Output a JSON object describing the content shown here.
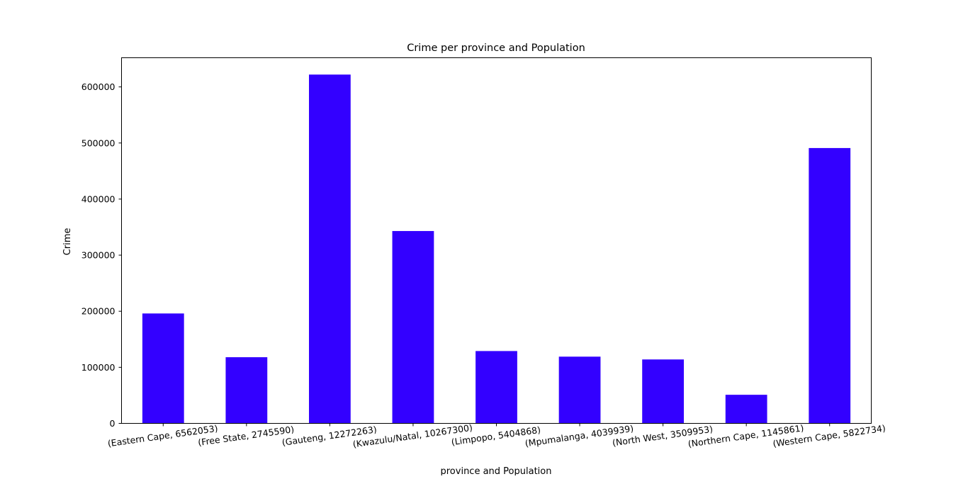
{
  "chart_data": {
    "type": "bar",
    "title": "Crime per province and Population",
    "xlabel": "province and Population",
    "ylabel": "Crime",
    "categories": [
      "(Eastern Cape, 6562053)",
      "(Free State, 2745590)",
      "(Gauteng, 12272263)",
      "(Kwazulu/Natal, 10267300)",
      "(Limpopo, 5404868)",
      "(Mpumalanga, 4039939)",
      "(North West, 3509953)",
      "(Northern Cape, 1145861)",
      "(Western Cape, 5822734)"
    ],
    "values": [
      196000,
      118000,
      622000,
      343000,
      129000,
      119000,
      114000,
      51000,
      491000
    ],
    "ylim": [
      0,
      652000
    ],
    "yticks": [
      0,
      100000,
      200000,
      300000,
      400000,
      500000,
      600000
    ],
    "ytick_labels": [
      "0",
      "100000",
      "200000",
      "300000",
      "400000",
      "500000",
      "600000"
    ],
    "bar_color": "#3300ff",
    "grid": false,
    "legend": "none"
  }
}
